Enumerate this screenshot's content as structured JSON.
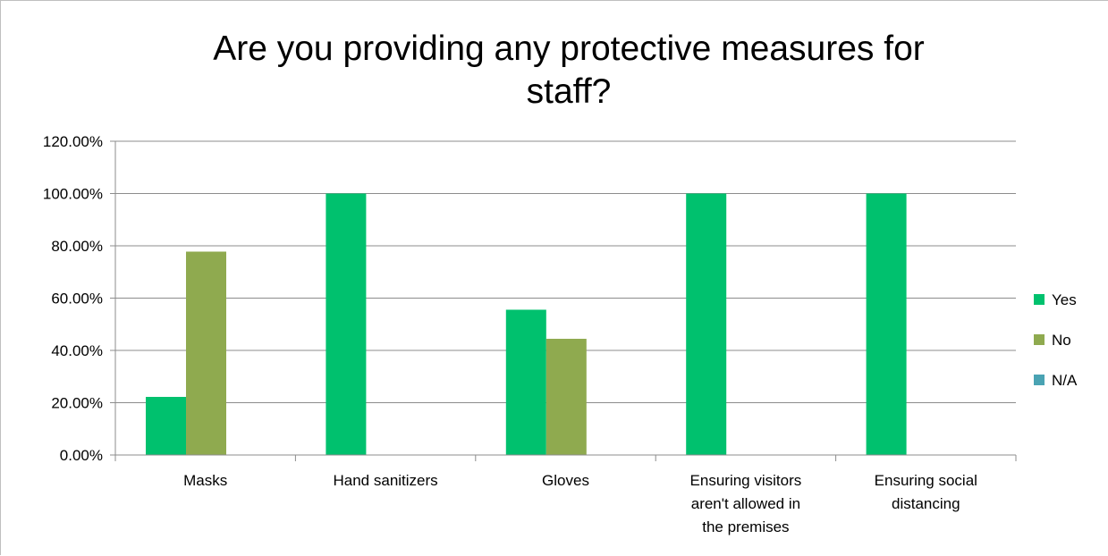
{
  "chart_data": {
    "type": "bar",
    "title": "Are you providing any protective measures for staff?",
    "title_lines": [
      "Are you providing any protective measures for",
      "staff?"
    ],
    "xlabel": "",
    "ylabel": "",
    "categories": [
      "Masks",
      "Hand sanitizers",
      "Gloves",
      "Ensuring visitors aren't allowed in the premises",
      "Ensuring social distancing"
    ],
    "category_lines": [
      [
        "Masks"
      ],
      [
        "Hand sanitizers"
      ],
      [
        "Gloves"
      ],
      [
        "Ensuring visitors",
        "aren't allowed in",
        "the premises"
      ],
      [
        "Ensuring social",
        "distancing"
      ]
    ],
    "series": [
      {
        "name": "Yes",
        "color": "#00c16e",
        "values": [
          0.2222,
          1.0,
          0.5556,
          1.0,
          1.0
        ]
      },
      {
        "name": "No",
        "color": "#8faa4f",
        "values": [
          0.7778,
          0.0,
          0.4444,
          0.0,
          0.0
        ]
      },
      {
        "name": "N/A",
        "color": "#4aa3b3",
        "values": [
          0.0,
          0.0,
          0.0,
          0.0,
          0.0
        ]
      }
    ],
    "ylim": [
      0,
      1.2
    ],
    "yticks": [
      0,
      0.2,
      0.4,
      0.6,
      0.8,
      1.0,
      1.2
    ],
    "ytick_labels": [
      "0.00%",
      "20.00%",
      "40.00%",
      "60.00%",
      "80.00%",
      "100.00%",
      "120.00%"
    ],
    "grid": true,
    "legend_position": "right"
  }
}
